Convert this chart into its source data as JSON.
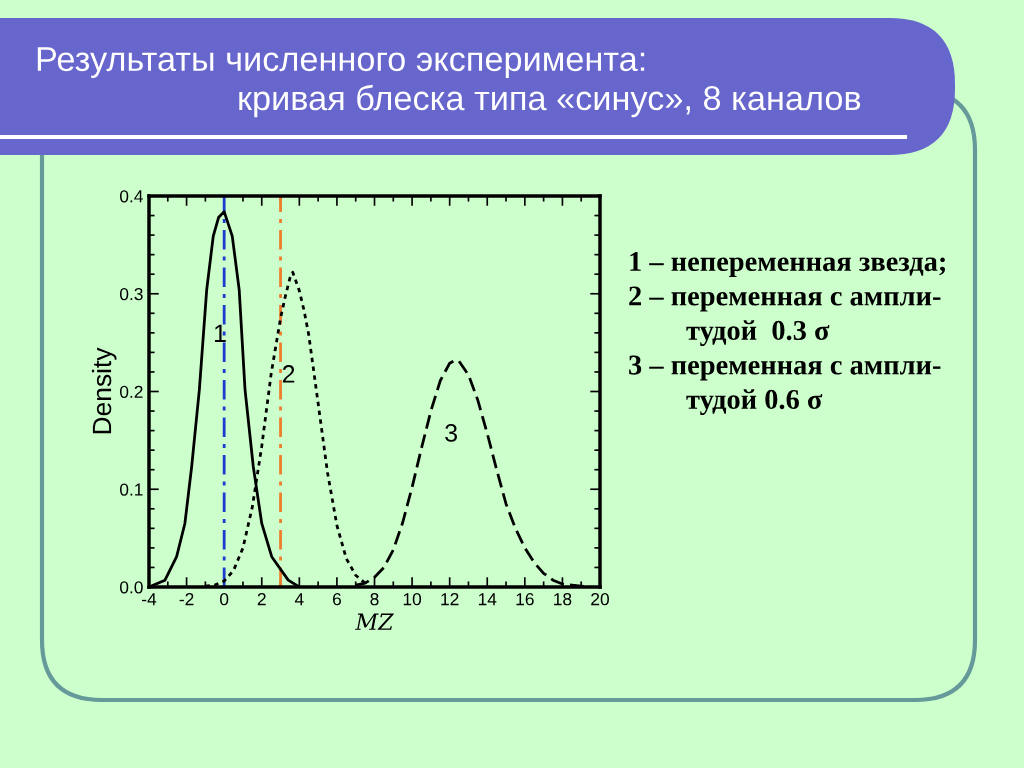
{
  "chart_data": {
    "type": "line",
    "title": "Результаты численного эксперимента:",
    "subtitle": "кривая блеска типа «синус», 8 каналов",
    "xlabel": "MZ",
    "ylabel": "Density",
    "xlim": [
      -4,
      20
    ],
    "xticks": [
      -4,
      -2,
      0,
      2,
      4,
      6,
      8,
      10,
      12,
      14,
      16,
      18,
      20
    ],
    "ylim": [
      0,
      0.4
    ],
    "yticks": [
      {
        "value": 0,
        "label": "0.0"
      },
      0.1,
      0.2,
      0.3,
      0.4
    ],
    "series": [
      {
        "name": "1",
        "color": "#000000",
        "line_style": "solid",
        "x": [
          -4,
          -3.15,
          -2.53,
          -2.09,
          -1.73,
          -1.32,
          -0.93,
          -0.58,
          -0.3,
          0,
          0.43,
          0.8,
          1.11,
          1.55,
          2.0,
          2.53,
          3.41,
          4
        ],
        "values": [
          0.0,
          0.007,
          0.031,
          0.065,
          0.123,
          0.202,
          0.304,
          0.359,
          0.378,
          0.384,
          0.359,
          0.304,
          0.202,
          0.123,
          0.065,
          0.031,
          0.007,
          0.0
        ]
      },
      {
        "name": "2",
        "color": "#000000",
        "line_style": "dotted",
        "x": [
          -1,
          -0.5,
          0,
          0.5,
          1,
          1.5,
          2,
          2.5,
          3,
          3.25,
          3.5,
          3.65,
          4,
          4.25,
          4.5,
          5,
          5.5,
          6,
          6.5,
          7,
          7.5
        ],
        "values": [
          0.001,
          0.002,
          0.006,
          0.017,
          0.04,
          0.082,
          0.144,
          0.218,
          0.275,
          0.297,
          0.316,
          0.322,
          0.303,
          0.283,
          0.258,
          0.188,
          0.117,
          0.063,
          0.029,
          0.012,
          0.004
        ]
      },
      {
        "name": "3",
        "color": "#000000",
        "line_style": "dashed",
        "x": [
          7,
          7.5,
          8,
          8.5,
          9,
          9.5,
          10,
          10.5,
          11,
          11.5,
          12,
          12.3,
          12.5,
          13,
          13.5,
          14,
          14.5,
          15,
          15.5,
          16,
          16.5,
          17,
          17.5,
          18,
          18.5,
          19,
          19.5
        ],
        "values": [
          0.002,
          0.004,
          0.01,
          0.02,
          0.038,
          0.066,
          0.102,
          0.142,
          0.18,
          0.211,
          0.229,
          0.232,
          0.231,
          0.217,
          0.191,
          0.157,
          0.12,
          0.085,
          0.06,
          0.04,
          0.025,
          0.014,
          0.007,
          0.003,
          0.002,
          0.001,
          0.0
        ]
      }
    ],
    "ref_lines": [
      {
        "axis": "x",
        "value": 0,
        "color": "#1c3ccf",
        "line_style": "dashdot"
      },
      {
        "axis": "x",
        "value": 3,
        "color": "#ee7d2c",
        "line_style": "dashdot"
      }
    ],
    "annotations": [
      "1 – непеременная звезда;",
      "2 – переменная с ампли-\nтудой  0.3 σ",
      "3 – переменная с ампли-\nтудой 0.6 σ"
    ]
  }
}
